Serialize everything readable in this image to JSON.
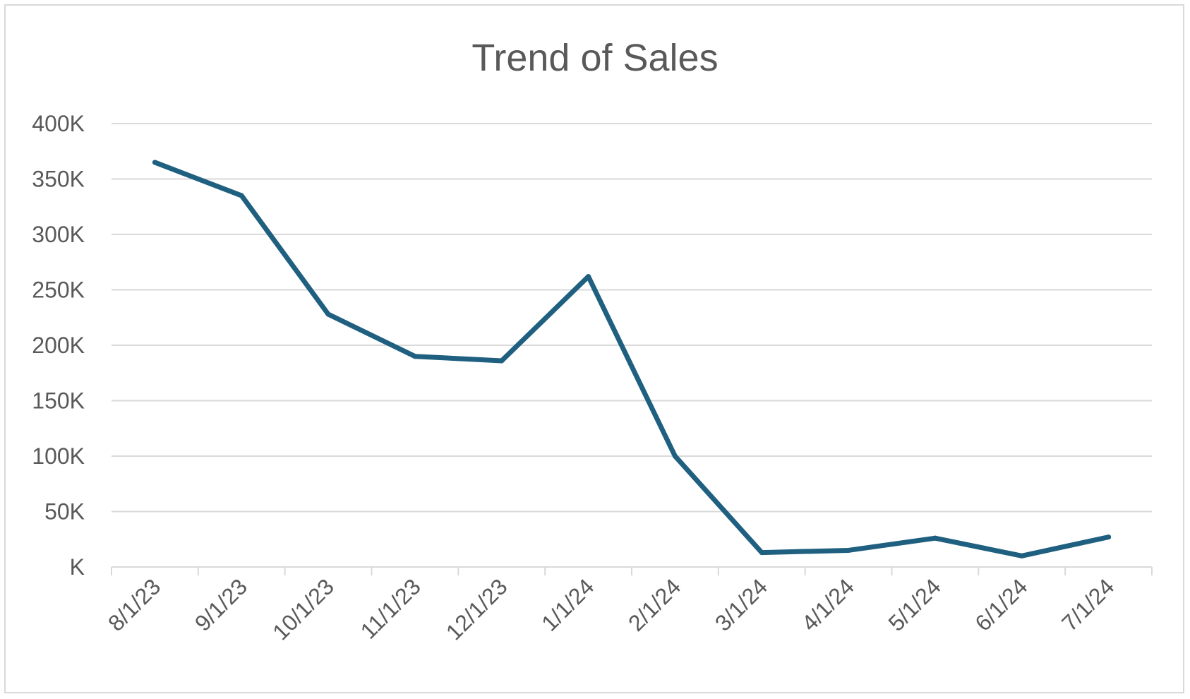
{
  "chart_data": {
    "type": "line",
    "title": "Trend of Sales",
    "xlabel": "",
    "ylabel": "",
    "categories": [
      "8/1/23",
      "9/1/23",
      "10/1/23",
      "11/1/23",
      "12/1/23",
      "1/1/24",
      "2/1/24",
      "3/1/24",
      "4/1/24",
      "5/1/24",
      "6/1/24",
      "7/1/24"
    ],
    "series": [
      {
        "color": "#1f5f80",
        "values": [
          365000,
          335000,
          228000,
          190000,
          186000,
          262000,
          100000,
          13000,
          15000,
          26000,
          10000,
          27000
        ]
      }
    ],
    "ylim": [
      0,
      400000
    ],
    "y_ticks": [
      0,
      50000,
      100000,
      150000,
      200000,
      250000,
      300000,
      350000,
      400000
    ],
    "y_tick_labels": [
      "K",
      "50K",
      "100K",
      "150K",
      "200K",
      "250K",
      "300K",
      "350K",
      "400K"
    ],
    "grid": true,
    "legend": "none"
  }
}
